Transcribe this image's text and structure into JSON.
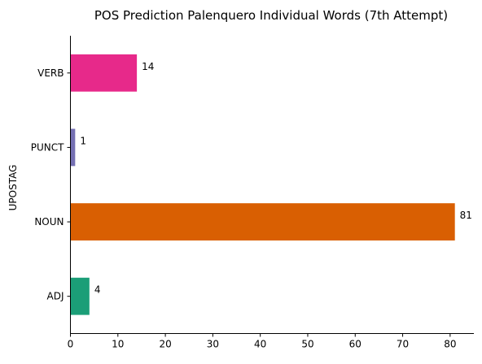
{
  "chart_data": {
    "type": "bar",
    "orientation": "horizontal",
    "title": "POS Prediction Palenquero Individual Words (7th Attempt)",
    "ylabel": "UPOSTAG",
    "xlabel": "",
    "categories": [
      "ADJ",
      "NOUN",
      "PUNCT",
      "VERB"
    ],
    "values": [
      4,
      81,
      1,
      14
    ],
    "data_labels": [
      "4",
      "81",
      "1",
      "14"
    ],
    "colors": [
      "#1b9e77",
      "#d95f02",
      "#7570b3",
      "#e7298a"
    ],
    "xlim": [
      0,
      85
    ],
    "xticks": [
      0,
      10,
      20,
      30,
      40,
      50,
      60,
      70,
      80
    ],
    "grid": false
  }
}
